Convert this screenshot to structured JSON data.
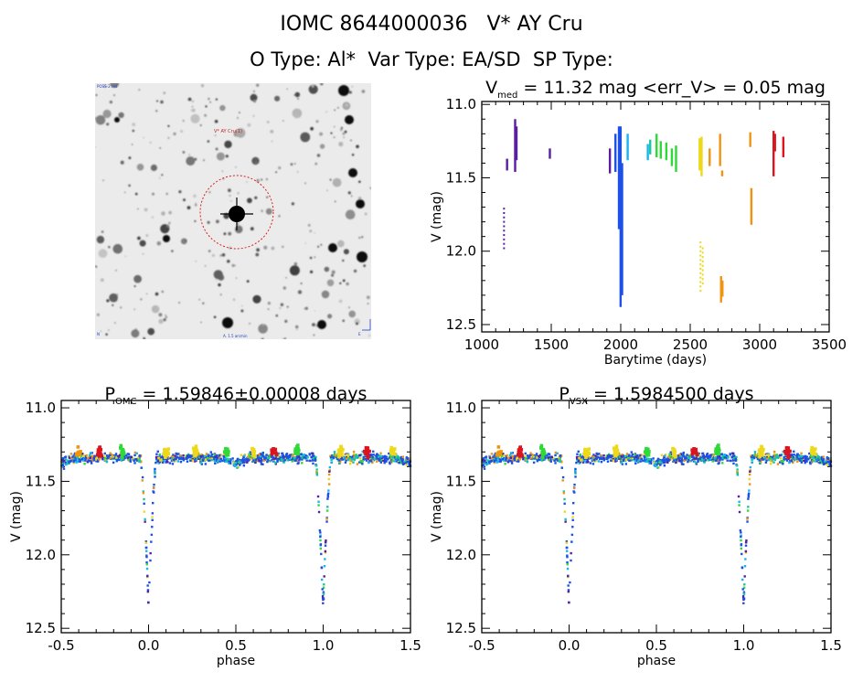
{
  "header": {
    "object_id": "IOMC 8644000036",
    "star_name": "V* AY Cru",
    "o_type": "O Type: Al*",
    "var_type": "Var Type: EA/SD",
    "sp_type": "SP Type:"
  },
  "sky_image": {
    "target_label": "V* AY Cru(1)",
    "top_left_label": "POSS-2 red",
    "bottom_label": "A. 1.5 arcmin",
    "bottom_left_label": "N",
    "bottom_right_label": "E"
  },
  "colors": {
    "purple": "#5a1ea0",
    "blue": "#1c50e6",
    "cyan": "#18b4f0",
    "teal": "#18c8a0",
    "green": "#30d838",
    "yellow": "#eed81a",
    "orange": "#f09410",
    "red": "#dc141e",
    "frame": "#000000"
  },
  "chart_data": [
    {
      "id": "lightcurve",
      "type": "scatter",
      "title_parts": [
        "V",
        "med",
        " = 11.32 mag <err_V> = 0.05 mag"
      ],
      "xlabel": "Barytime (days)",
      "ylabel": "V (mag)",
      "xlim": [
        1000,
        3500
      ],
      "ylim": [
        12.55,
        10.98
      ],
      "xticks": [
        1000,
        1500,
        2000,
        2500,
        3000,
        3500
      ],
      "yticks": [
        11.0,
        11.5,
        12.0,
        12.5
      ],
      "segments": [
        {
          "x": 1160,
          "y1": 11.71,
          "y2": 11.99,
          "color": "purple",
          "dotted": true
        },
        {
          "x": 1182,
          "y1": 11.37,
          "y2": 11.45,
          "color": "purple"
        },
        {
          "x": 1240,
          "y1": 11.1,
          "y2": 11.46,
          "color": "purple"
        },
        {
          "x": 1250,
          "y1": 11.15,
          "y2": 11.38,
          "color": "purple"
        },
        {
          "x": 1490,
          "y1": 11.3,
          "y2": 11.37,
          "color": "purple"
        },
        {
          "x": 1922,
          "y1": 11.3,
          "y2": 11.47,
          "color": "purple"
        },
        {
          "x": 1962,
          "y1": 11.2,
          "y2": 11.46,
          "color": "blue"
        },
        {
          "x": 1987,
          "y1": 11.15,
          "y2": 11.85,
          "color": "blue"
        },
        {
          "x": 1999,
          "y1": 11.15,
          "y2": 12.38,
          "color": "blue"
        },
        {
          "x": 2010,
          "y1": 11.4,
          "y2": 12.3,
          "color": "blue"
        },
        {
          "x": 2050,
          "y1": 11.2,
          "y2": 11.38,
          "color": "cyan"
        },
        {
          "x": 2195,
          "y1": 11.27,
          "y2": 11.38,
          "color": "cyan"
        },
        {
          "x": 2212,
          "y1": 11.24,
          "y2": 11.34,
          "color": "teal"
        },
        {
          "x": 2258,
          "y1": 11.2,
          "y2": 11.36,
          "color": "green"
        },
        {
          "x": 2288,
          "y1": 11.25,
          "y2": 11.37,
          "color": "green"
        },
        {
          "x": 2328,
          "y1": 11.26,
          "y2": 11.38,
          "color": "green"
        },
        {
          "x": 2368,
          "y1": 11.3,
          "y2": 11.42,
          "color": "green"
        },
        {
          "x": 2398,
          "y1": 11.28,
          "y2": 11.46,
          "color": "green"
        },
        {
          "x": 2568,
          "y1": 11.23,
          "y2": 11.45,
          "color": "yellow"
        },
        {
          "x": 2582,
          "y1": 11.22,
          "y2": 11.49,
          "color": "yellow"
        },
        {
          "x": 2574,
          "y1": 11.94,
          "y2": 12.28,
          "color": "yellow",
          "dotted": true
        },
        {
          "x": 2590,
          "y1": 11.98,
          "y2": 12.22,
          "color": "yellow",
          "dotted": true
        },
        {
          "x": 2640,
          "y1": 11.3,
          "y2": 11.42,
          "color": "orange"
        },
        {
          "x": 2715,
          "y1": 11.2,
          "y2": 11.42,
          "color": "orange"
        },
        {
          "x": 2730,
          "y1": 11.45,
          "y2": 11.49,
          "color": "orange"
        },
        {
          "x": 2722,
          "y1": 12.17,
          "y2": 12.35,
          "color": "orange"
        },
        {
          "x": 2732,
          "y1": 12.2,
          "y2": 12.31,
          "color": "orange"
        },
        {
          "x": 2932,
          "y1": 11.19,
          "y2": 11.29,
          "color": "orange"
        },
        {
          "x": 2940,
          "y1": 11.57,
          "y2": 11.82,
          "color": "orange"
        },
        {
          "x": 3100,
          "y1": 11.18,
          "y2": 11.49,
          "color": "red"
        },
        {
          "x": 3110,
          "y1": 11.2,
          "y2": 11.32,
          "color": "red"
        },
        {
          "x": 3170,
          "y1": 11.22,
          "y2": 11.36,
          "color": "red"
        }
      ]
    },
    {
      "id": "phase-omc",
      "type": "scatter",
      "title_parts": [
        "P",
        "OMC",
        " = 1.59846±0.00008 days"
      ],
      "xlabel": "phase",
      "ylabel": "V (mag)",
      "xlim": [
        -0.5,
        1.5
      ],
      "ylim": [
        12.53,
        10.95
      ],
      "xticks": [
        -0.5,
        0.0,
        0.5,
        1.0,
        1.5
      ],
      "yticks": [
        11.0,
        11.5,
        12.0,
        12.5
      ],
      "model": {
        "baseline": 11.34,
        "primary_depth": 1.0,
        "primary_width": 0.045,
        "secondary_phase": 0.5,
        "secondary_depth": 0.04,
        "secondary_width": 0.08
      }
    },
    {
      "id": "phase-vsx",
      "type": "scatter",
      "title_parts": [
        "P",
        "VSX",
        " = 1.5984500 days"
      ],
      "xlabel": "phase",
      "ylabel": "V (mag)",
      "xlim": [
        -0.5,
        1.5
      ],
      "ylim": [
        12.53,
        10.95
      ],
      "xticks": [
        -0.5,
        0.0,
        0.5,
        1.0,
        1.5
      ],
      "yticks": [
        11.0,
        11.5,
        12.0,
        12.5
      ],
      "model": {
        "baseline": 11.34,
        "primary_depth": 1.0,
        "primary_width": 0.045,
        "secondary_phase": 0.5,
        "secondary_depth": 0.04,
        "secondary_width": 0.08
      }
    }
  ]
}
